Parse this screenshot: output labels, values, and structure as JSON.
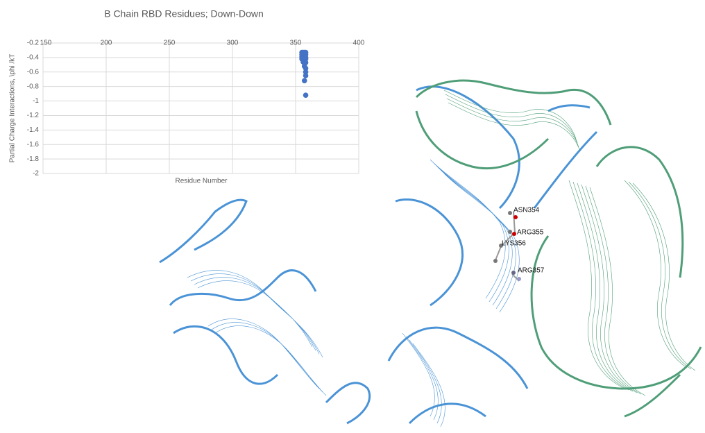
{
  "chart_data": {
    "type": "scatter",
    "title": "B Chain RBD Residues; Down-Down",
    "x_label": "Residue Number",
    "y_label": "Partial Charge Interactions, \\phi /kT",
    "xlim": [
      150,
      400
    ],
    "xticks": [
      150,
      200,
      250,
      300,
      350,
      400
    ],
    "ylim": [
      -2,
      -0.2
    ],
    "yticks": [
      -0.2,
      -0.4,
      -0.6,
      -0.8,
      -1,
      -1.2,
      -1.4,
      -1.6,
      -1.8,
      -2
    ],
    "grid": true,
    "series": [
      {
        "name": "Residues",
        "color": "#4472c4",
        "x": [
          355,
          356,
          357,
          358,
          355,
          356,
          357,
          358,
          355,
          356,
          357,
          358,
          355,
          356,
          357,
          358,
          356,
          357,
          358,
          357,
          358,
          358,
          358,
          357,
          358
        ],
        "values": [
          -0.33,
          -0.33,
          -0.33,
          -0.33,
          -0.36,
          -0.36,
          -0.36,
          -0.36,
          -0.39,
          -0.4,
          -0.39,
          -0.4,
          -0.42,
          -0.43,
          -0.44,
          -0.42,
          -0.46,
          -0.48,
          -0.47,
          -0.52,
          -0.55,
          -0.6,
          -0.65,
          -0.72,
          -0.92
        ]
      }
    ]
  },
  "structure": {
    "labels": [
      "ASN354",
      "ARG355",
      "LYS356",
      "ARG357"
    ]
  }
}
